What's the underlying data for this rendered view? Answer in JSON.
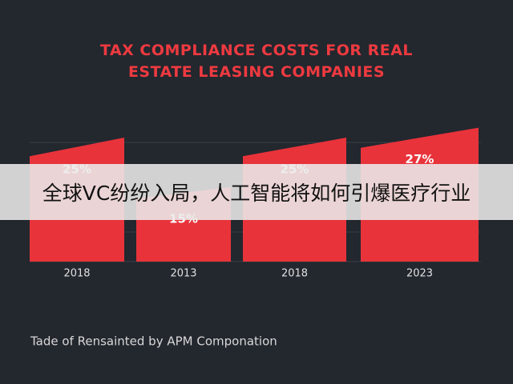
{
  "chart_data": {
    "type": "bar",
    "title": "TAX COMPLIANCE COSTS FOR REAL ESTATE LEASING COMPANIES",
    "categories": [
      "2018",
      "2013",
      "2018",
      "2023"
    ],
    "values": [
      25,
      15,
      25,
      27
    ],
    "value_labels": [
      "25%",
      "15%",
      "25%",
      "27%"
    ],
    "color": "#e8333b",
    "source": "Tade of Rensainted by APM Componation"
  },
  "banner": "全球VC纷纷入局，人工智能将如何引爆医疗行业"
}
